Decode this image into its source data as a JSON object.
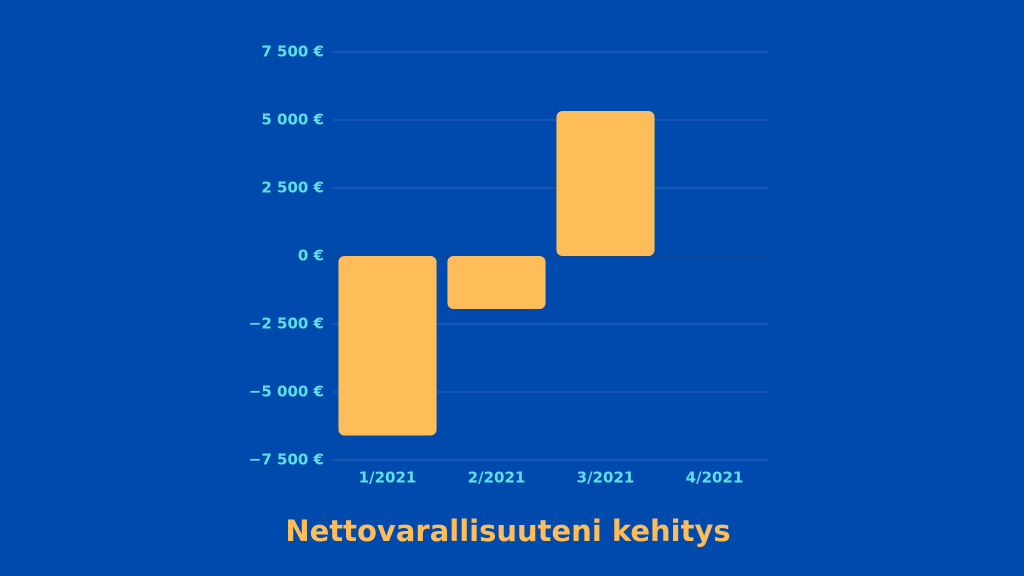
{
  "chart_data": {
    "type": "bar",
    "title": "Nettovarallisuuteni kehitys",
    "categories": [
      "1/2021",
      "2/2021",
      "3/2021",
      "4/2021"
    ],
    "values": [
      -6600,
      -1950,
      5330,
      0
    ],
    "color": "#ffbd59",
    "ylim": [
      -7500,
      7500
    ],
    "yticks": [
      {
        "value": -7500,
        "label": "−7 500 €"
      },
      {
        "value": -5000,
        "label": "−5 000 €"
      },
      {
        "value": -2500,
        "label": "−2 500 €"
      },
      {
        "value": 0,
        "label": "0 €"
      },
      {
        "value": 2500,
        "label": "2 500 €"
      },
      {
        "value": 5000,
        "label": "5 000 €"
      },
      {
        "value": 7500,
        "label": "7 500 €"
      }
    ],
    "grid": true
  }
}
